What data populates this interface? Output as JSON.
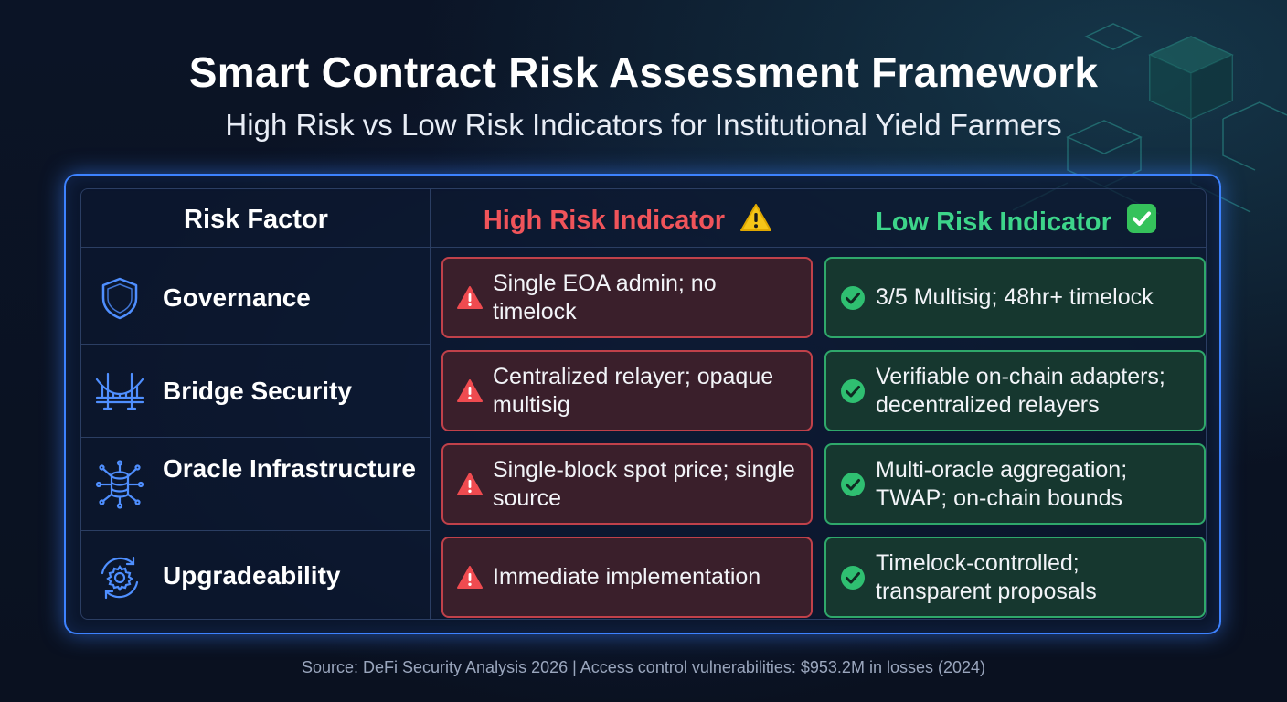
{
  "title": "Smart Contract Risk Assessment Framework",
  "subtitle": "High Risk vs Low Risk Indicators for Institutional Yield Farmers",
  "table": {
    "headers": {
      "factor": "Risk Factor",
      "high": "High Risk Indicator",
      "low": "Low Risk Indicator"
    },
    "rows": [
      {
        "icon": "shield-icon",
        "factor": "Governance",
        "high": "Single EOA admin; no timelock",
        "low": "3/5 Multisig; 48hr+ timelock"
      },
      {
        "icon": "bridge-icon",
        "factor": "Bridge Security",
        "high": "Centralized relayer; opaque multisig",
        "low": "Verifiable on-chain adapters; decentralized relayers"
      },
      {
        "icon": "database-network-icon",
        "factor": "Oracle Infrastructure",
        "high": "Single-block spot price; single source",
        "low": "Multi-oracle aggregation; TWAP; on-chain bounds"
      },
      {
        "icon": "gear-refresh-icon",
        "factor": "Upgradeability",
        "high": "Immediate implementation",
        "low": "Timelock-controlled; transparent proposals"
      }
    ]
  },
  "source": "Source: DeFi Security Analysis 2026 | Access control vulnerabilities: $953.2M in losses (2024)",
  "colors": {
    "accent_blue": "#3d82ff",
    "high_risk_red": "#f0545a",
    "low_risk_green": "#3dd58a",
    "background": "#0a1120"
  }
}
